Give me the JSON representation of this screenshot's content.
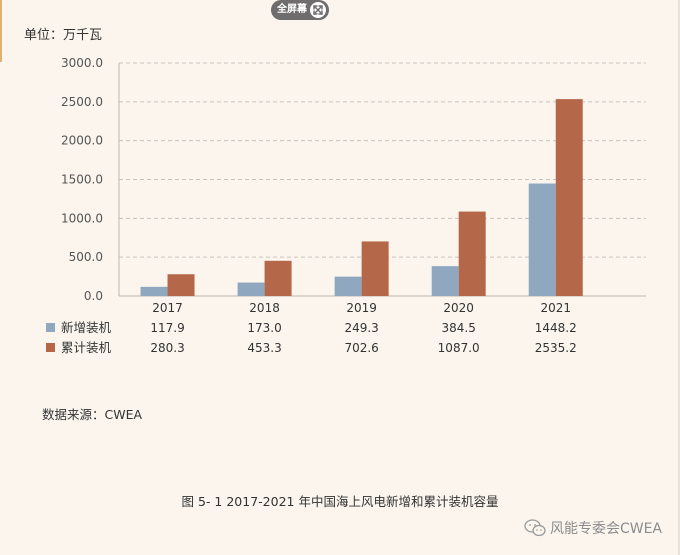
{
  "toolbar": {
    "fullscreen_label": "全屏幕",
    "fullscreen_icon": "crossed-arrows-icon"
  },
  "unit_label": "单位：万千瓦",
  "source_label": "数据来源：CWEA",
  "caption": "图 5- 1 2017-2021 年中国海上风电新增和累计装机容量",
  "watermark": {
    "text": "风能专委会CWEA",
    "icon": "wechat-icon"
  },
  "colors": {
    "background": "#fbf5ee",
    "new_series": "#8fa8c0",
    "cumulative_series": "#b5674a"
  },
  "chart_data": {
    "type": "bar",
    "categories": [
      "2017",
      "2018",
      "2019",
      "2020",
      "2021"
    ],
    "series": [
      {
        "name": "新增装机",
        "values": [
          117.9,
          173.0,
          249.3,
          384.5,
          1448.2
        ],
        "labels": [
          "117.9",
          "173.0",
          "249.3",
          "384.5",
          "1448.2"
        ],
        "color": "#8fa8c0"
      },
      {
        "name": "累计装机",
        "values": [
          280.3,
          453.3,
          702.6,
          1087.0,
          2535.2
        ],
        "labels": [
          "280.3",
          "453.3",
          "702.6",
          "1087.0",
          "2535.2"
        ],
        "color": "#b5674a"
      }
    ],
    "ylim": [
      0,
      3000
    ],
    "yticks": [
      "0.0",
      "500.0",
      "1000.0",
      "1500.0",
      "2000.0",
      "2500.0",
      "3000.0"
    ],
    "grid": true,
    "legend": "data-table-left"
  }
}
